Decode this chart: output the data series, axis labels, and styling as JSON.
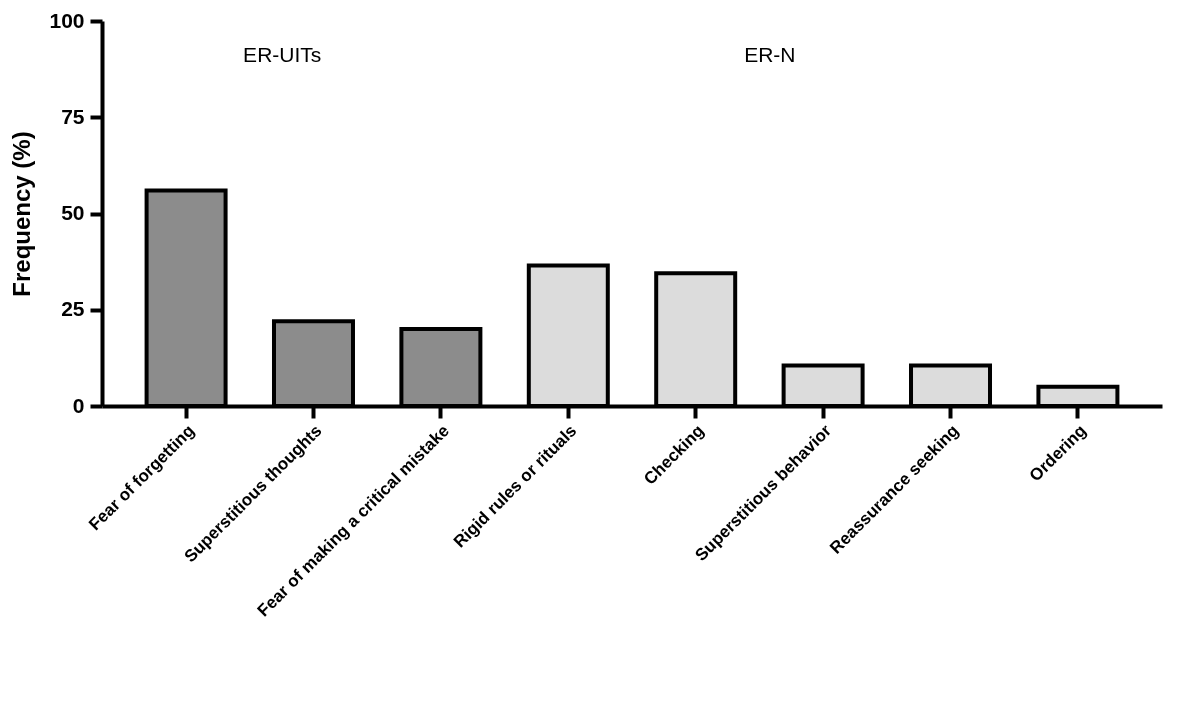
{
  "chart_data": {
    "type": "bar",
    "ylabel": "Frequency (%)",
    "categories": [
      "Fear of forgetting",
      "Superstitious thoughts",
      "Fear of making a critical mistake",
      "Rigid rules or rituals",
      "Checking",
      "Superstitious behavior",
      "Reassurance seeking",
      "Ordering"
    ],
    "values": [
      56,
      22,
      20,
      36.5,
      34.5,
      10.5,
      10.5,
      5
    ],
    "colors": [
      "#8c8c8c",
      "#8c8c8c",
      "#8c8c8c",
      "#dcdcdc",
      "#dcdcdc",
      "#dcdcdc",
      "#dcdcdc",
      "#dcdcdc"
    ],
    "ylim": [
      0,
      100
    ],
    "yticks": [
      0,
      25,
      50,
      75,
      100
    ],
    "grid": false,
    "annotations": [
      "ER-UITs",
      "ER-N"
    ]
  }
}
